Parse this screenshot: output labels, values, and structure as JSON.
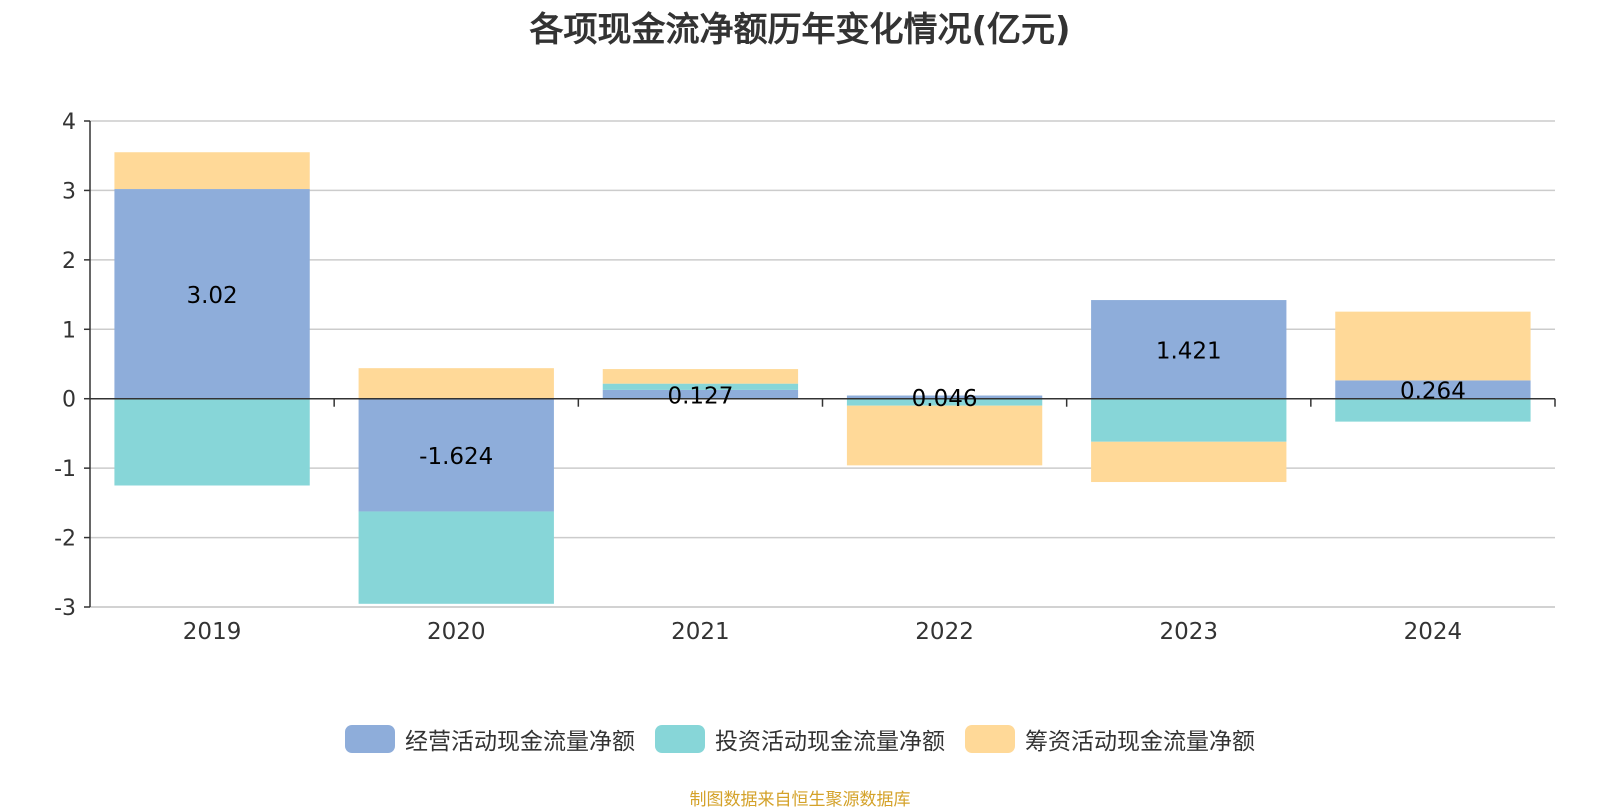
{
  "chart_data": {
    "type": "bar",
    "stacked": true,
    "title": "各项现金流净额历年变化情况(亿元)",
    "categories": [
      "2019",
      "2020",
      "2021",
      "2022",
      "2023",
      "2024"
    ],
    "ylim": [
      -3,
      4
    ],
    "yticks": [
      4,
      3,
      2,
      1,
      0,
      -1,
      -2,
      -3
    ],
    "grid": true,
    "legend_position": "bottom",
    "series": [
      {
        "name": "经营活动现金流量净额",
        "color": "#8eadda",
        "values": [
          3.02,
          -1.624,
          0.127,
          0.046,
          1.421,
          0.264
        ],
        "labels": [
          "3.02",
          "-1.624",
          "0.127",
          "0.046",
          "1.421",
          "0.264"
        ]
      },
      {
        "name": "投资活动现金流量净额",
        "color": "#87d6d8",
        "values": [
          -1.25,
          -1.33,
          0.09,
          -0.1,
          -0.62,
          -0.33
        ]
      },
      {
        "name": "筹资活动现金流量净额",
        "color": "#ffd998",
        "values": [
          0.53,
          0.44,
          0.21,
          -0.86,
          -0.58,
          0.99
        ]
      }
    ]
  },
  "source_note": "制图数据来自恒生聚源数据库"
}
